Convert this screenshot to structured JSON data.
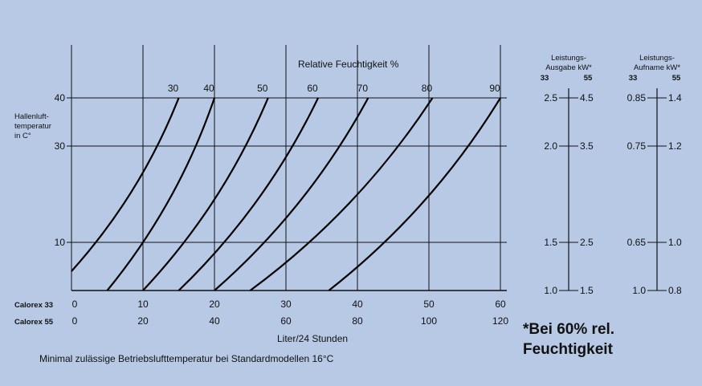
{
  "chart_data": {
    "type": "line",
    "title": "Relative Feuchtigkeit %",
    "ylabel": [
      "Hallenluft-",
      "temperatur",
      "in C°"
    ],
    "xlabel": "Liter/24 Stunden",
    "footnote": "Minimal zulässige Betriebslufttemperatur bei Standardmodellen 16°C",
    "ylim": [
      0,
      40
    ],
    "y_ticks": [
      {
        "label": "40",
        "value": 40
      },
      {
        "label": "30",
        "value": 30
      },
      {
        "label": "10",
        "value": 10
      }
    ],
    "x_rows": [
      {
        "name": "Calorex 33",
        "ticks": [
          "0",
          "10",
          "20",
          "30",
          "40",
          "50",
          "60"
        ]
      },
      {
        "name": "Calorex 55",
        "ticks": [
          "0",
          "20",
          "40",
          "60",
          "80",
          "100",
          "120"
        ]
      }
    ],
    "xlim": [
      0,
      60
    ],
    "grid": true,
    "series": [
      {
        "name": "30",
        "x": [
          0,
          15.0
        ],
        "y": [
          4,
          40
        ]
      },
      {
        "name": "40",
        "x": [
          5,
          20.0
        ],
        "y": [
          0,
          40
        ]
      },
      {
        "name": "50",
        "x": [
          10,
          27.5
        ],
        "y": [
          0,
          40
        ]
      },
      {
        "name": "60",
        "x": [
          15,
          34.5
        ],
        "y": [
          0,
          40
        ]
      },
      {
        "name": "70",
        "x": [
          20,
          41.5
        ],
        "y": [
          0,
          40
        ]
      },
      {
        "name": "80",
        "x": [
          25,
          50.5
        ],
        "y": [
          0,
          40
        ]
      },
      {
        "name": "90",
        "x": [
          36,
          60
        ],
        "y": [
          0,
          40
        ]
      }
    ],
    "scales": [
      {
        "header": [
          "Leistungs-",
          "Ausgabe kW*"
        ],
        "sub": [
          "33",
          "55"
        ],
        "rows": [
          {
            "y": 40,
            "left": "2.5",
            "right": "4.5"
          },
          {
            "y": 30,
            "left": "2.0",
            "right": "3.5"
          },
          {
            "y": 10,
            "left": "1.5",
            "right": "2.5"
          },
          {
            "y": 0,
            "left": "1.0",
            "right": "1.5"
          }
        ]
      },
      {
        "header": [
          "Leistungs-",
          "Aufname kW*"
        ],
        "sub": [
          "33",
          "55"
        ],
        "rows": [
          {
            "y": 40,
            "left": "0.85",
            "right": "1.4"
          },
          {
            "y": 30,
            "left": "0.75",
            "right": "1.2"
          },
          {
            "y": 10,
            "left": "0.65",
            "right": "1.0"
          },
          {
            "y": 0,
            "left": "1.0",
            "right": "0.8"
          }
        ]
      }
    ],
    "note": [
      "*Bei 60% rel.",
      "Feuchtigkeit"
    ]
  }
}
